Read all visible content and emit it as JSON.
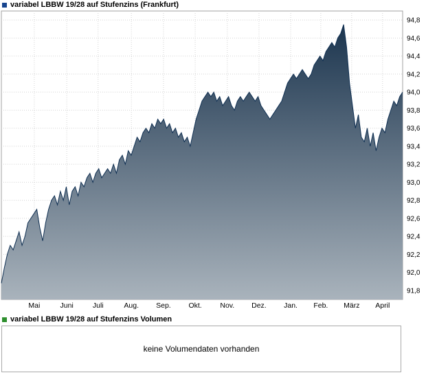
{
  "price_panel": {
    "legend": {
      "label": "variabel LBBW 19/28 auf Stufenzins (Frankfurt)",
      "marker_color": "#17458f"
    }
  },
  "chart_data": {
    "type": "area",
    "title": "variabel LBBW 19/28 auf Stufenzins (Frankfurt)",
    "xlabel": "",
    "ylabel": "",
    "ylim": [
      91.7,
      94.9
    ],
    "grid": true,
    "legend_position": "top-left",
    "yticks": [
      {
        "value": 94.8,
        "label": "94,8"
      },
      {
        "value": 94.6,
        "label": "94,6"
      },
      {
        "value": 94.4,
        "label": "94,4"
      },
      {
        "value": 94.2,
        "label": "94,2"
      },
      {
        "value": 94.0,
        "label": "94,0"
      },
      {
        "value": 93.8,
        "label": "93,8"
      },
      {
        "value": 93.6,
        "label": "93,6"
      },
      {
        "value": 93.4,
        "label": "93,4"
      },
      {
        "value": 93.2,
        "label": "93,2"
      },
      {
        "value": 93.0,
        "label": "93,0"
      },
      {
        "value": 92.8,
        "label": "92,8"
      },
      {
        "value": 92.6,
        "label": "92,6"
      },
      {
        "value": 92.4,
        "label": "92,4"
      },
      {
        "value": 92.2,
        "label": "92,2"
      },
      {
        "value": 92.0,
        "label": "92,0"
      },
      {
        "value": 91.8,
        "label": "91,8"
      }
    ],
    "months": [
      {
        "label": "Mai",
        "pos": 0.082
      },
      {
        "label": "Juni",
        "pos": 0.163
      },
      {
        "label": "Juli",
        "pos": 0.241
      },
      {
        "label": "Aug.",
        "pos": 0.324
      },
      {
        "label": "Sep.",
        "pos": 0.404
      },
      {
        "label": "Okt.",
        "pos": 0.483
      },
      {
        "label": "Nov.",
        "pos": 0.563
      },
      {
        "label": "Dez.",
        "pos": 0.642
      },
      {
        "label": "Jan.",
        "pos": 0.721
      },
      {
        "label": "Feb.",
        "pos": 0.796
      },
      {
        "label": "März",
        "pos": 0.873
      },
      {
        "label": "April",
        "pos": 0.95
      }
    ],
    "values": [
      91.88,
      92.05,
      92.2,
      92.3,
      92.25,
      92.35,
      92.45,
      92.3,
      92.4,
      92.55,
      92.6,
      92.65,
      92.7,
      92.5,
      92.35,
      92.55,
      92.7,
      92.8,
      92.85,
      92.75,
      92.9,
      92.8,
      92.95,
      92.75,
      92.9,
      92.95,
      92.85,
      93.0,
      92.95,
      93.05,
      93.1,
      93.0,
      93.1,
      93.15,
      93.05,
      93.1,
      93.15,
      93.1,
      93.2,
      93.1,
      93.25,
      93.3,
      93.2,
      93.35,
      93.3,
      93.4,
      93.5,
      93.45,
      93.55,
      93.6,
      93.55,
      93.65,
      93.6,
      93.7,
      93.65,
      93.7,
      93.6,
      93.65,
      93.55,
      93.6,
      93.5,
      93.55,
      93.45,
      93.5,
      93.4,
      93.55,
      93.7,
      93.8,
      93.9,
      93.95,
      94.0,
      93.95,
      94.0,
      93.9,
      93.95,
      93.85,
      93.9,
      93.95,
      93.85,
      93.8,
      93.9,
      93.95,
      93.9,
      93.95,
      94.0,
      93.95,
      93.9,
      93.95,
      93.85,
      93.8,
      93.75,
      93.7,
      93.75,
      93.8,
      93.85,
      93.9,
      94.0,
      94.1,
      94.15,
      94.2,
      94.15,
      94.2,
      94.25,
      94.2,
      94.15,
      94.2,
      94.3,
      94.35,
      94.4,
      94.35,
      94.45,
      94.5,
      94.55,
      94.5,
      94.6,
      94.65,
      94.75,
      94.5,
      94.1,
      93.85,
      93.6,
      93.75,
      93.5,
      93.45,
      93.6,
      93.4,
      93.55,
      93.35,
      93.5,
      93.6,
      93.55,
      93.7,
      93.8,
      93.9,
      93.85,
      93.95,
      94.0
    ],
    "colors": {
      "line": "#0f2f52",
      "fill_top": "#152f49",
      "fill_bottom": "#a9b3bc",
      "grid": "#d4d4d4",
      "frame": "#a0a0a0",
      "text": "#000000"
    }
  },
  "volume_panel": {
    "legend": {
      "label": "variabel LBBW 19/28 auf Stufenzins Volumen",
      "marker_color": "#2e8f2e"
    },
    "message": "keine Volumendaten vorhanden"
  }
}
